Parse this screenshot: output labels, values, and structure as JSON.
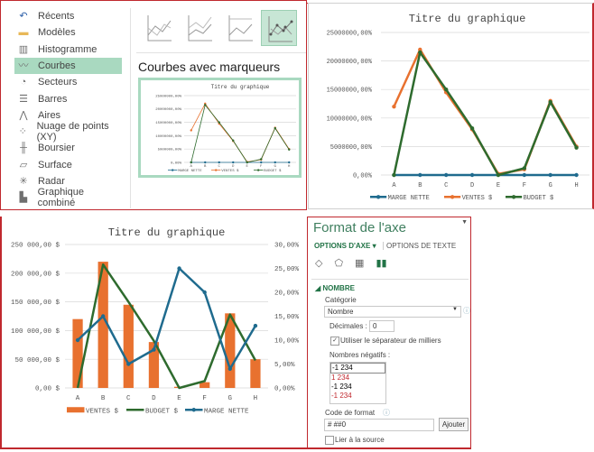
{
  "chart_dialog": {
    "categories": [
      {
        "label": "Récents",
        "icon": "recent-icon"
      },
      {
        "label": "Modèles",
        "icon": "folder-icon"
      },
      {
        "label": "Histogramme",
        "icon": "column-chart-icon"
      },
      {
        "label": "Courbes",
        "icon": "line-chart-icon"
      },
      {
        "label": "Secteurs",
        "icon": "pie-chart-icon"
      },
      {
        "label": "Barres",
        "icon": "bar-chart-icon"
      },
      {
        "label": "Aires",
        "icon": "area-chart-icon"
      },
      {
        "label": "Nuage de points (XY)",
        "icon": "scatter-chart-icon"
      },
      {
        "label": "Boursier",
        "icon": "stock-chart-icon"
      },
      {
        "label": "Surface",
        "icon": "surface-chart-icon"
      },
      {
        "label": "Radar",
        "icon": "radar-chart-icon"
      },
      {
        "label": "Graphique combiné",
        "icon": "combo-chart-icon"
      }
    ],
    "selected_category": "Courbes",
    "subtypes": [
      "Courbes",
      "Courbes empilées",
      "Courbes empilées 100%",
      "Courbes avec marqueurs"
    ],
    "selected_subtype_title": "Courbes avec marqueurs"
  },
  "chart_data": [
    {
      "id": "preview",
      "type": "line",
      "title": "Titre du graphique",
      "categories": [
        "A",
        "B",
        "C",
        "D",
        "E",
        "F",
        "G",
        "H"
      ],
      "yticks": [
        "0,00%",
        "5000000,00%",
        "10000000,00%",
        "15000000,00%",
        "20000000,00%",
        "25000000,00%"
      ],
      "ylim": [
        0,
        25000000
      ],
      "series": [
        {
          "name": "MARGE NETTE",
          "color": "#1f6b8e",
          "values": [
            10,
            15,
            5,
            8,
            25,
            20,
            4,
            13
          ]
        },
        {
          "name": "VENTES $",
          "color": "#e8712f",
          "values": [
            12000000,
            22000000,
            14500000,
            8000000,
            200000,
            1000000,
            13000000,
            5000000
          ]
        },
        {
          "name": "BUDGET $",
          "color": "#2e6b2e",
          "values": [
            0,
            21500000,
            15000000,
            8200000,
            0,
            1200000,
            12800000,
            4800000
          ]
        }
      ]
    },
    {
      "id": "line",
      "type": "line",
      "title": "Titre du graphique",
      "categories": [
        "A",
        "B",
        "C",
        "D",
        "E",
        "F",
        "G",
        "H"
      ],
      "yticks": [
        "0,00%",
        "5000000,00%",
        "10000000,00%",
        "15000000,00%",
        "20000000,00%",
        "25000000,00%"
      ],
      "ylim": [
        0,
        25000000
      ],
      "legend": "bottom",
      "series": [
        {
          "name": "MARGE NETTE",
          "color": "#1f6b8e",
          "values": [
            10,
            15,
            5,
            8,
            25,
            20,
            4,
            13
          ]
        },
        {
          "name": "VENTES $",
          "color": "#e8712f",
          "values": [
            12000000,
            22000000,
            14500000,
            8000000,
            200000,
            1000000,
            13000000,
            5000000
          ]
        },
        {
          "name": "BUDGET $",
          "color": "#2e6b2e",
          "values": [
            0,
            21500000,
            15000000,
            8200000,
            0,
            1200000,
            12800000,
            4800000
          ]
        }
      ]
    },
    {
      "id": "combo",
      "type": "bar",
      "title": "Titre du graphique",
      "categories": [
        "A",
        "B",
        "C",
        "D",
        "E",
        "F",
        "G",
        "H"
      ],
      "yticks": [
        "0,00 $",
        "50 000,00 $",
        "100 000,00 $",
        "150 000,00 $",
        "200 000,00 $",
        "250 000,00 $"
      ],
      "ylim": [
        0,
        250000
      ],
      "y2ticks": [
        "0,00%",
        "5,00%",
        "10,00%",
        "15,00%",
        "20,00%",
        "25,00%",
        "30,00%"
      ],
      "y2lim": [
        0,
        30
      ],
      "legend": "bottom",
      "series": [
        {
          "name": "VENTES $",
          "kind": "bar",
          "axis": "primary",
          "color": "#e8712f",
          "values": [
            120000,
            220000,
            145000,
            80000,
            2000,
            10000,
            130000,
            50000
          ]
        },
        {
          "name": "BUDGET $",
          "kind": "line",
          "axis": "primary",
          "color": "#2e6b2e",
          "values": [
            0,
            215000,
            150000,
            82000,
            0,
            12000,
            128000,
            48000
          ]
        },
        {
          "name": "MARGE NETTE",
          "kind": "line-marker",
          "axis": "secondary",
          "color": "#1f6b8e",
          "values": [
            10,
            15,
            5,
            8,
            25,
            20,
            4,
            13
          ]
        }
      ]
    }
  ],
  "format_panel": {
    "title": "Format de l'axe",
    "tab_axis": "OPTIONS D'AXE ▾",
    "tab_text": "OPTIONS DE TEXTE",
    "section": "NOMBRE",
    "category_label": "Catégorie",
    "category_value": "Nombre",
    "decimals_label": "Décimales :",
    "decimals_value": "0",
    "thousands_label": "Utiliser le séparateur de milliers",
    "thousands_checked": true,
    "negatives_label": "Nombres négatifs :",
    "negatives": [
      "-1 234",
      "1 234",
      "-1 234",
      "-1 234"
    ],
    "format_code_label": "Code de format",
    "format_code_value": "# ##0",
    "add_button": "Ajouter",
    "link_source_label": "Lier à la source"
  }
}
